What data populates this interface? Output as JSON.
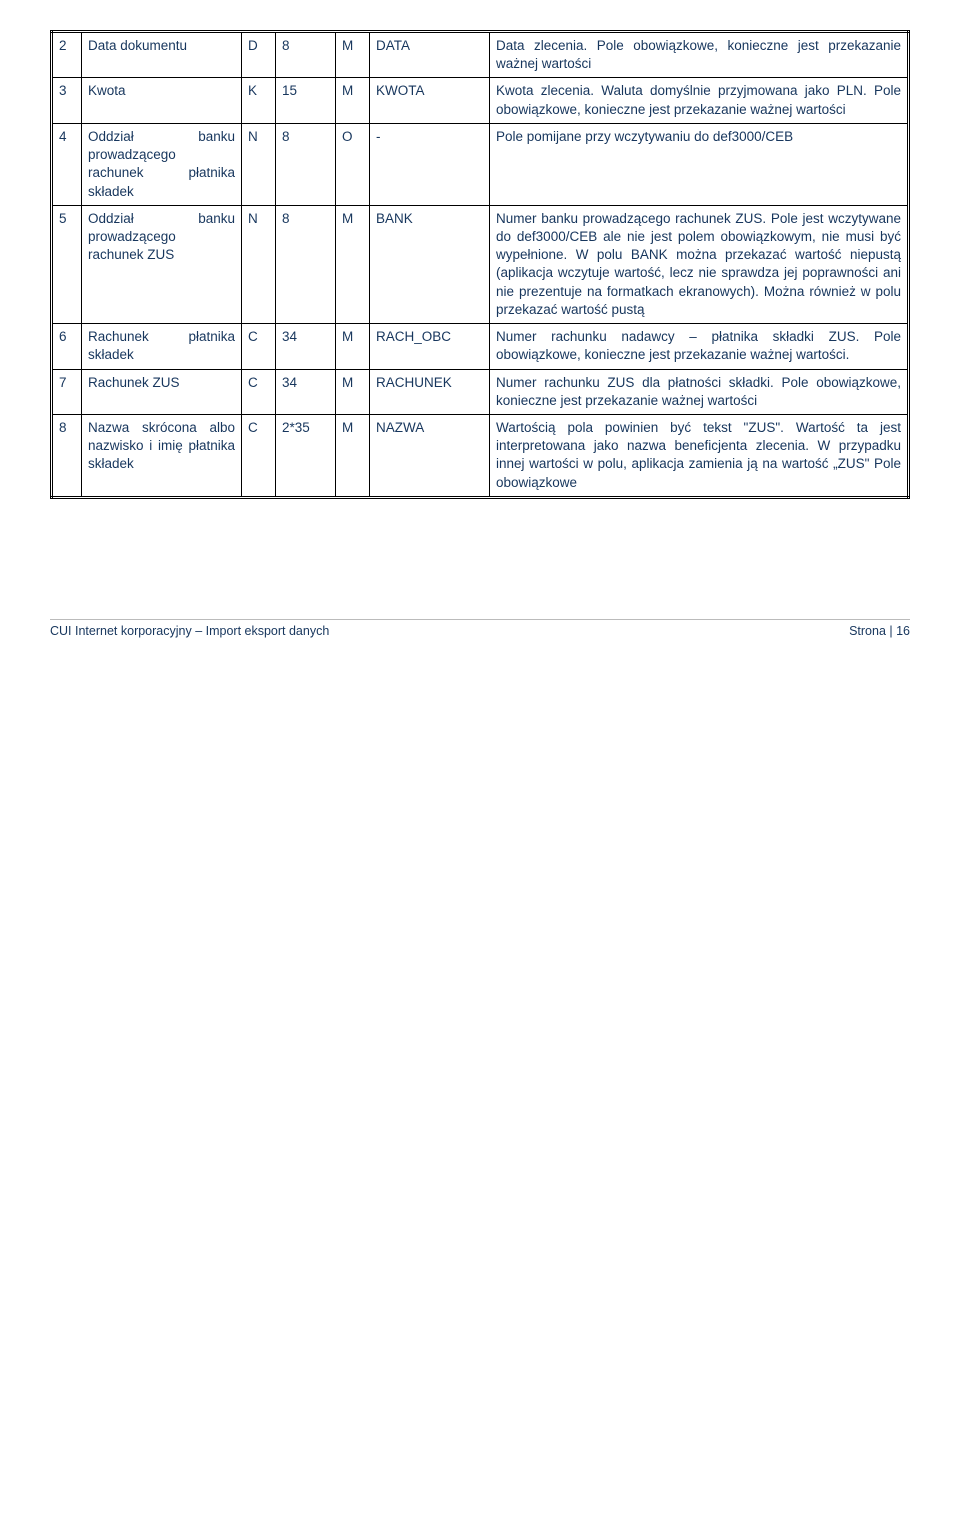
{
  "table": {
    "rows": [
      {
        "num": "2",
        "name": "Data dokumentu",
        "type": "D",
        "len": "8",
        "req": "M",
        "field": "DATA",
        "desc": "Data zlecenia. Pole obowiązkowe, konieczne jest przekazanie ważnej wartości"
      },
      {
        "num": "3",
        "name": "Kwota",
        "type": "K",
        "len": "15",
        "req": "M",
        "field": "KWOTA",
        "desc": "Kwota zlecenia. Waluta domyślnie przyjmowana jako PLN. Pole obowiązkowe, konieczne jest przekazanie ważnej wartości"
      },
      {
        "num": "4",
        "name": "Oddział banku prowadzącego rachunek płatnika składek",
        "type": "N",
        "len": "8",
        "req": "O",
        "field": "-",
        "desc": "Pole pomijane przy wczytywaniu do def3000/CEB"
      },
      {
        "num": "5",
        "name": "Oddział banku prowadzącego rachunek ZUS",
        "type": "N",
        "len": "8",
        "req": "M",
        "field": "BANK",
        "desc": "Numer banku prowadzącego rachunek ZUS. Pole jest wczytywane do def3000/CEB ale nie jest polem obowiązkowym, nie musi być wypełnione. W polu BANK można przekazać wartość niepustą (aplikacja wczytuje wartość, lecz nie sprawdza jej poprawności ani nie prezentuje na formatkach ekranowych). Można również w polu przekazać wartość pustą"
      },
      {
        "num": "6",
        "name": "Rachunek płatnika składek",
        "type": "C",
        "len": "34",
        "req": "M",
        "field": "RACH_OBC",
        "desc": "Numer rachunku nadawcy – płatnika składki ZUS. Pole obowiązkowe, konieczne jest przekazanie ważnej wartości."
      },
      {
        "num": "7",
        "name": "Rachunek ZUS",
        "type": "C",
        "len": "34",
        "req": "M",
        "field": "RACHUNEK",
        "desc": "Numer rachunku ZUS dla płatności składki. Pole obowiązkowe, konieczne jest przekazanie ważnej wartości"
      },
      {
        "num": "8",
        "name": "Nazwa skrócona albo nazwisko i imię płatnika składek",
        "type": "C",
        "len": "2*35",
        "req": "M",
        "field": "NAZWA",
        "desc": "Wartością pola powinien być tekst \"ZUS\". Wartość ta jest interpretowana jako nazwa beneficjenta zlecenia. W przypadku innej wartości w polu, aplikacja zamienia ją na wartość „ZUS\" Pole obowiązkowe"
      }
    ]
  },
  "footer": {
    "left": "CUI Internet korporacyjny – Import eksport danych",
    "right": "Strona | 16"
  }
}
